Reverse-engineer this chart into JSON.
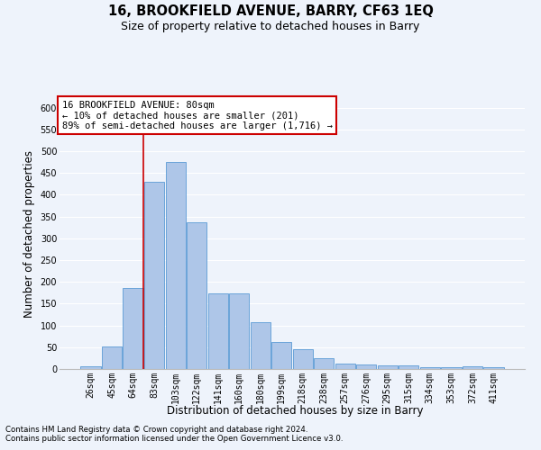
{
  "title": "16, BROOKFIELD AVENUE, BARRY, CF63 1EQ",
  "subtitle": "Size of property relative to detached houses in Barry",
  "xlabel": "Distribution of detached houses by size in Barry",
  "ylabel": "Number of detached properties",
  "footnote1": "Contains HM Land Registry data © Crown copyright and database right 2024.",
  "footnote2": "Contains public sector information licensed under the Open Government Licence v3.0.",
  "annotation_line1": "16 BROOKFIELD AVENUE: 80sqm",
  "annotation_line2": "← 10% of detached houses are smaller (201)",
  "annotation_line3": "89% of semi-detached houses are larger (1,716) →",
  "bar_values": [
    7,
    51,
    186,
    430,
    476,
    337,
    174,
    174,
    107,
    62,
    45,
    25,
    12,
    10,
    8,
    8,
    5,
    5,
    7,
    5
  ],
  "bar_labels": [
    "26sqm",
    "45sqm",
    "64sqm",
    "83sqm",
    "103sqm",
    "122sqm",
    "141sqm",
    "160sqm",
    "180sqm",
    "199sqm",
    "218sqm",
    "238sqm",
    "257sqm",
    "276sqm",
    "295sqm",
    "315sqm",
    "334sqm",
    "353sqm",
    "372sqm",
    "411sqm"
  ],
  "bar_color": "#aec6e8",
  "bar_edge_color": "#5b9bd5",
  "red_line_x": 2.5,
  "ylim": [
    0,
    620
  ],
  "yticks": [
    0,
    50,
    100,
    150,
    200,
    250,
    300,
    350,
    400,
    450,
    500,
    550,
    600
  ],
  "background_color": "#eef3fb",
  "grid_color": "#ffffff",
  "annotation_box_color": "#ffffff",
  "annotation_box_edge": "#cc0000",
  "red_line_color": "#cc0000",
  "title_fontsize": 10.5,
  "subtitle_fontsize": 9,
  "axis_label_fontsize": 8.5,
  "tick_fontsize": 7,
  "annotation_fontsize": 7.5
}
